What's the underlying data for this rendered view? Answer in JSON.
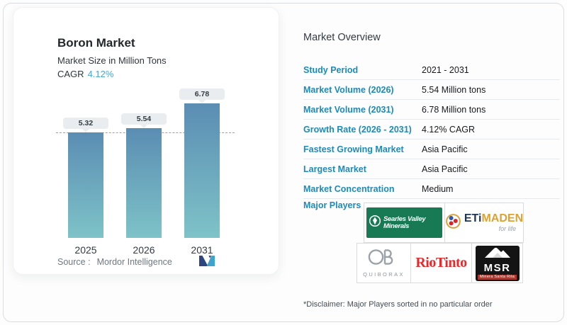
{
  "card": {
    "title": "Boron Market",
    "subtitle": "Market Size in Million Tons",
    "cagr_label": "CAGR",
    "cagr_value": "4.12%",
    "source_label": "Source :",
    "source_value": "Mordor Intelligence"
  },
  "chart_data": {
    "type": "bar",
    "title": "Boron Market",
    "ylabel": "Market Size in Million Tons",
    "categories": [
      "2025",
      "2026",
      "2031"
    ],
    "values": [
      5.32,
      5.54,
      6.78
    ],
    "label_badges": [
      "5.32",
      "5.54",
      "6.78"
    ],
    "unit": "Million tons",
    "ylim": [
      0,
      7.0
    ],
    "reference_line": 5.32,
    "grid": false,
    "legend": "none",
    "bar_color_top": "#5b8db3",
    "bar_color_bottom": "#7ec3c8"
  },
  "overview": {
    "title": "Market Overview",
    "rows": [
      {
        "label": "Study Period",
        "value": "2021 - 2031"
      },
      {
        "label": "Market Volume (2026)",
        "value": "5.54 Million tons"
      },
      {
        "label": "Market Volume (2031)",
        "value": "6.78 Million tons"
      },
      {
        "label": "Growth Rate (2026 - 2031)",
        "value": "4.12% CAGR"
      },
      {
        "label": "Fastest Growing Market",
        "value": "Asia Pacific"
      },
      {
        "label": "Largest Market",
        "value": "Asia Pacific"
      },
      {
        "label": "Market Concentration",
        "value": "Medium"
      }
    ],
    "major_players_label": "Major Players",
    "disclaimer": "*Disclaimer: Major Players sorted in no particular order"
  },
  "logos": {
    "searles": {
      "text": "Searles Valley Minerals",
      "green": "#187a55"
    },
    "etimaden": {
      "text_bold": "ETi",
      "text_gold": "MADEN",
      "tagline": "for life",
      "gold": "#dfa12f",
      "navy": "#1d3553"
    },
    "quiborax": {
      "text": "QUIBORAX",
      "gray": "#8e969c"
    },
    "riotinto": {
      "text": "RioTinto",
      "red": "#e22b2d"
    },
    "msr": {
      "text": "MSR",
      "subtext": "Minera Santa Rita"
    }
  },
  "colors": {
    "accent_blue": "#1f8ab5",
    "cagr_blue": "#4ba6c9",
    "badge_bg": "#e9edef",
    "dashed_line": "#96a2aa",
    "outer_border": "#d9dde0"
  }
}
